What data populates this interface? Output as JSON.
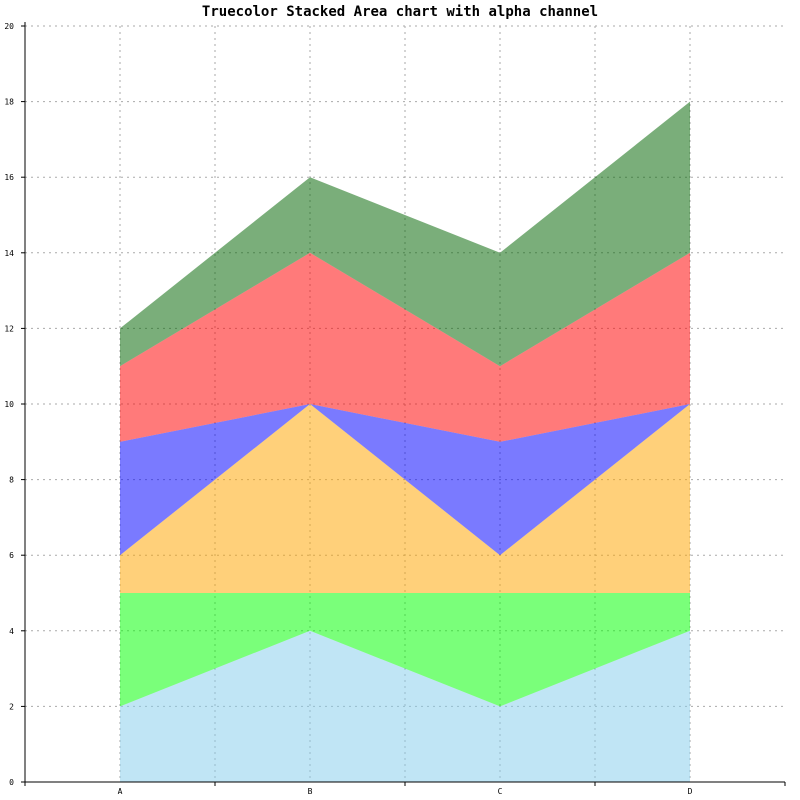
{
  "chart_data": {
    "type": "area",
    "stacked": true,
    "title": "Truecolor Stacked Area chart with alpha channel",
    "xlabel": "",
    "ylabel": "",
    "categories": [
      "A",
      "B",
      "C",
      "D"
    ],
    "ylim": [
      0,
      20
    ],
    "yticks": [
      0,
      2,
      4,
      6,
      8,
      10,
      12,
      14,
      16,
      18,
      20
    ],
    "grid": true,
    "legend": "none",
    "series": [
      {
        "values": [
          2,
          4,
          2,
          4
        ],
        "color": "#87CEEB"
      },
      {
        "values": [
          3,
          1,
          3,
          1
        ],
        "color": "#00FF00"
      },
      {
        "values": [
          1,
          5,
          1,
          5
        ],
        "color": "#FFA500"
      },
      {
        "values": [
          3,
          0,
          3,
          0
        ],
        "color": "#0000FF"
      },
      {
        "values": [
          2,
          4,
          2,
          4
        ],
        "color": "#FF0000"
      },
      {
        "values": [
          1,
          2,
          3,
          4
        ],
        "color": "#006400"
      }
    ],
    "alpha": 0.52
  }
}
